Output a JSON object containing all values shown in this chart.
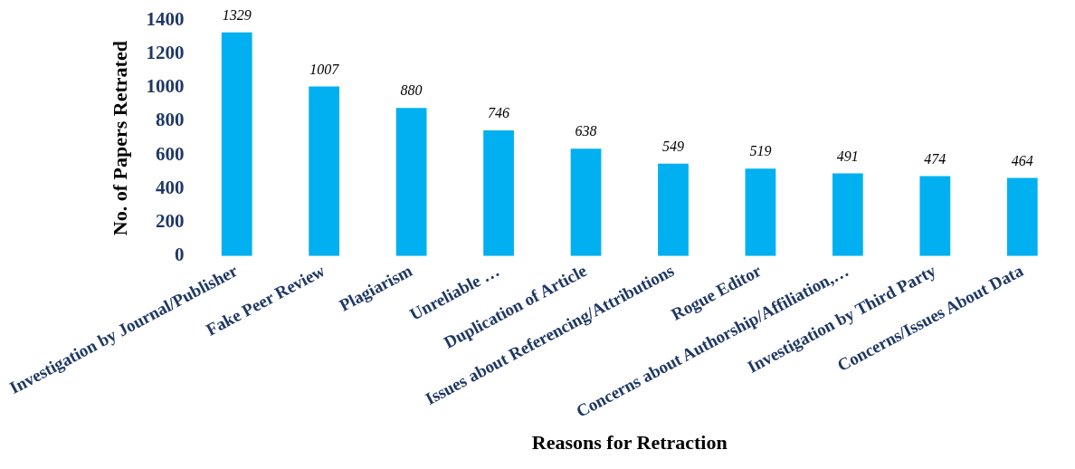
{
  "chart_data": {
    "type": "bar",
    "xlabel": "Reasons for Retraction",
    "ylabel": "No. of Papers Retrated",
    "categories": [
      "Investigation by Journal/Publisher",
      "Fake Peer Review",
      "Plagiarism",
      "Unreliable …",
      "Duplication of Article",
      "Issues about Referencing/Attributions",
      "Rogue Editor",
      "Concerns about Authorship/Affiliation,…",
      "Investigation by Third Party",
      "Concerns/Issues About Data"
    ],
    "values": [
      1329,
      1007,
      880,
      746,
      638,
      549,
      519,
      491,
      474,
      464
    ],
    "color": "#00b0f0",
    "ylim": [
      0,
      1400
    ],
    "yticks": [
      0,
      200,
      400,
      600,
      800,
      1000,
      1200,
      1400
    ],
    "grid": false,
    "legend": false,
    "data_labels": true
  }
}
